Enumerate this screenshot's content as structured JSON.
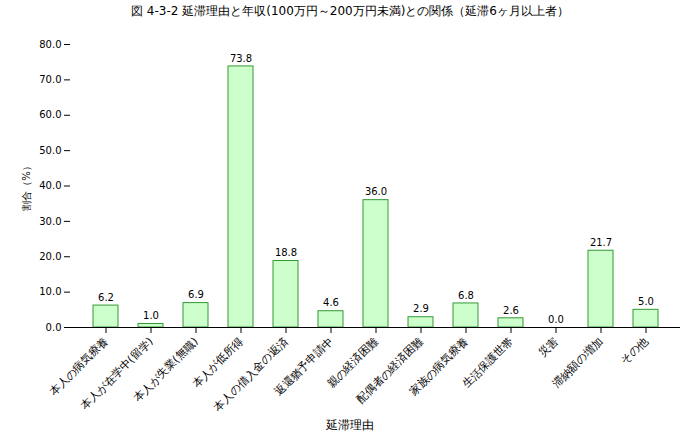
{
  "chart_data": {
    "type": "bar",
    "title": "図 4-3-2 延滞理由と年収(100万円～200万円未満)との関係（延滞6ヶ月以上者）",
    "x_label": "延滞理由",
    "y_label": "割合（%）",
    "categories": [
      "本人の病気療養",
      "本人が在学中(留学)",
      "本人が失業(無職)",
      "本人が低所得",
      "本人の借入金の返済",
      "返還猶予申請中",
      "親の経済困難",
      "配偶者の経済困難",
      "家族の病気療養",
      "生活保護世帯",
      "災害",
      "滞納額の増加",
      "その他"
    ],
    "values": [
      6.2,
      1.0,
      6.9,
      73.8,
      18.8,
      4.6,
      36.0,
      2.9,
      6.8,
      2.6,
      0.0,
      21.7,
      5.0
    ],
    "value_labels": [
      "6.2",
      "1.0",
      "6.9",
      "73.8",
      "18.8",
      "4.6",
      "36.0",
      "2.9",
      "6.8",
      "2.6",
      "0.0",
      "21.7",
      "5.0"
    ],
    "color": "#ccffcc",
    "ylim": [
      0,
      80
    ],
    "yticks": [
      {
        "value": 0,
        "label": "0.0"
      },
      {
        "value": 10,
        "label": "10.0"
      },
      {
        "value": 20,
        "label": "20.0"
      },
      {
        "value": 30,
        "label": "30.0"
      },
      {
        "value": 40,
        "label": "40.0"
      },
      {
        "value": 50,
        "label": "50.0"
      },
      {
        "value": 60,
        "label": "60.0"
      },
      {
        "value": 70,
        "label": "70.0"
      },
      {
        "value": 80,
        "label": "80.0"
      }
    ],
    "grid": false,
    "data_labels": true
  }
}
